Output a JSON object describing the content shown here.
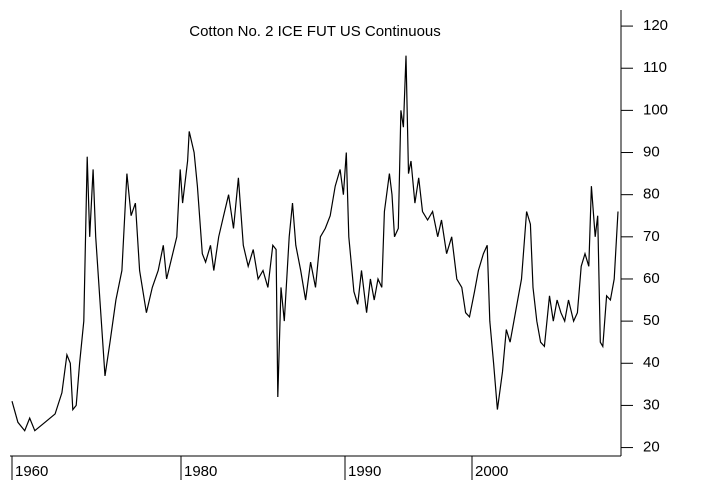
{
  "chart_data": {
    "type": "line",
    "title": "Cotton No. 2 ICE FUT US Continuous",
    "xlim": [
      1959.8,
      2011.7
    ],
    "xticks": [
      1960,
      1980,
      1990,
      2000
    ],
    "ylim": [
      18,
      125
    ],
    "yticks": [
      20,
      30,
      40,
      50,
      60,
      70,
      80,
      90,
      100,
      110,
      120
    ],
    "y_axis_side": "right",
    "grid": false,
    "series": [
      {
        "color": "#000000",
        "x": [
          1960.0,
          1960.7,
          1961.5,
          1962.1,
          1962.7,
          1963.9,
          1965.1,
          1965.9,
          1966.5,
          1966.9,
          1967.2,
          1967.6,
          1968.0,
          1968.5,
          1968.9,
          1969.2,
          1969.6,
          1969.9,
          1970.4,
          1971.0,
          1971.6,
          1972.3,
          1973.0,
          1973.6,
          1974.1,
          1974.6,
          1975.1,
          1975.9,
          1976.6,
          1977.3,
          1977.9,
          1978.3,
          1978.9,
          1979.5,
          1979.9,
          1980.1,
          1980.4,
          1980.5,
          1980.8,
          1981.0,
          1981.3,
          1981.5,
          1981.8,
          1982.0,
          1982.3,
          1982.6,
          1982.9,
          1983.2,
          1983.5,
          1983.8,
          1984.1,
          1984.4,
          1984.7,
          1985.0,
          1985.3,
          1985.6,
          1985.8,
          1985.9,
          1986.1,
          1986.3,
          1986.6,
          1986.8,
          1987.0,
          1987.3,
          1987.6,
          1987.9,
          1988.2,
          1988.5,
          1988.8,
          1989.1,
          1989.4,
          1989.7,
          1989.9,
          1990.1,
          1990.3,
          1990.7,
          1991.0,
          1991.3,
          1991.7,
          1992.0,
          1992.3,
          1992.6,
          1992.9,
          1993.1,
          1993.5,
          1993.7,
          1993.9,
          1994.2,
          1994.4,
          1994.6,
          1994.8,
          1995.0,
          1995.2,
          1995.5,
          1995.8,
          1996.1,
          1996.5,
          1996.9,
          1997.3,
          1997.6,
          1998.0,
          1998.4,
          1998.8,
          1999.2,
          1999.5,
          1999.8,
          2000.2,
          2000.5,
          2000.9,
          2001.2,
          2001.4,
          2001.7,
          2002.0,
          2002.4,
          2002.7,
          2003.0,
          2003.3,
          2003.6,
          2003.9,
          2004.3,
          2004.6,
          2004.8,
          2005.1,
          2005.4,
          2005.7,
          2006.1,
          2006.4,
          2006.7,
          2007.0,
          2007.3,
          2007.6,
          2008.0,
          2008.3,
          2008.6,
          2008.9,
          2009.2,
          2009.4,
          2009.7,
          2009.9,
          2010.1,
          2010.3,
          2010.6,
          2010.9,
          2011.2,
          2011.5
        ],
        "values": [
          31,
          26,
          24,
          27,
          24,
          26,
          28,
          33,
          42,
          40,
          29,
          30,
          40,
          50,
          89,
          70,
          86,
          70,
          55,
          37,
          45,
          55,
          62,
          85,
          75,
          78,
          62,
          52,
          58,
          62,
          68,
          60,
          65,
          70,
          86,
          78,
          88,
          95,
          90,
          82,
          66,
          64,
          68,
          62,
          70,
          75,
          80,
          72,
          84,
          68,
          63,
          67,
          60,
          62,
          58,
          68,
          67,
          32,
          58,
          50,
          70,
          78,
          68,
          62,
          55,
          64,
          58,
          70,
          72,
          75,
          82,
          86,
          80,
          90,
          70,
          57,
          54,
          62,
          52,
          60,
          55,
          60,
          58,
          76,
          85,
          80,
          70,
          72,
          100,
          96,
          113,
          85,
          88,
          78,
          84,
          76,
          74,
          76,
          70,
          74,
          66,
          70,
          60,
          58,
          52,
          51,
          57,
          62,
          66,
          68,
          50,
          40,
          29,
          38,
          48,
          45,
          50,
          55,
          60,
          76,
          73,
          58,
          50,
          45,
          44,
          56,
          50,
          55,
          52,
          50,
          55,
          50,
          52,
          63,
          66,
          63,
          82,
          70,
          75,
          45,
          44,
          56,
          55,
          60,
          76
        ]
      }
    ]
  }
}
